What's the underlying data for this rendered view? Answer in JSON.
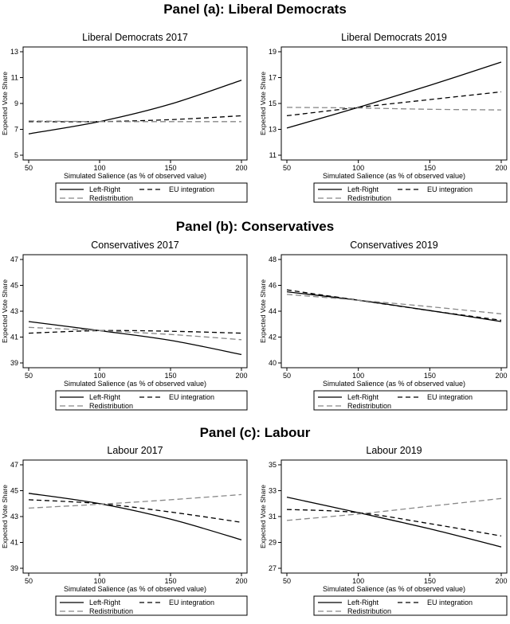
{
  "figure": {
    "x_label": "Simulated Salience (as % of observed value)",
    "y_label": "Expected Vote Share"
  },
  "panels": [
    {
      "title": "Panel (a): Liberal Democrats",
      "charts": [
        {
          "type": "line",
          "title": "Liberal Democrats 2017",
          "xlabel": "Simulated Salience (as % of observed value)",
          "ylabel": "Expected Vote Share",
          "xlim": [
            50,
            200
          ],
          "xticks": [
            50,
            100,
            150,
            200
          ],
          "ylim": [
            5,
            13
          ],
          "yticks": [
            5,
            7,
            9,
            11,
            13
          ],
          "x": [
            50,
            100,
            150,
            200
          ],
          "series": [
            {
              "name": "Left-Right",
              "style": "solid",
              "color": "#000000",
              "values": [
                6.65,
                7.6,
                8.95,
                10.8
              ]
            },
            {
              "name": "EU integration",
              "style": "dashed",
              "color": "#000000",
              "values": [
                7.6,
                7.6,
                7.75,
                8.05
              ]
            },
            {
              "name": "Redistribution",
              "style": "dashed",
              "color": "#888888",
              "values": [
                7.65,
                7.6,
                7.6,
                7.6
              ]
            }
          ]
        },
        {
          "type": "line",
          "title": "Liberal Democrats 2019",
          "xlabel": "Simulated Salience (as % of observed value)",
          "ylabel": "Expected Vote Share",
          "xlim": [
            50,
            200
          ],
          "xticks": [
            50,
            100,
            150,
            200
          ],
          "ylim": [
            11,
            19
          ],
          "yticks": [
            11,
            13,
            15,
            17,
            19
          ],
          "x": [
            50,
            100,
            150,
            200
          ],
          "series": [
            {
              "name": "Left-Right",
              "style": "solid",
              "color": "#000000",
              "values": [
                13.1,
                14.7,
                16.4,
                18.2
              ]
            },
            {
              "name": "EU integration",
              "style": "dashed",
              "color": "#000000",
              "values": [
                14.05,
                14.7,
                15.3,
                15.9
              ]
            },
            {
              "name": "Redistribution",
              "style": "dashed",
              "color": "#888888",
              "values": [
                14.7,
                14.65,
                14.55,
                14.5
              ]
            }
          ]
        }
      ]
    },
    {
      "title": "Panel (b): Conservatives",
      "charts": [
        {
          "type": "line",
          "title": "Conservatives 2017",
          "xlabel": "Simulated Salience (as % of observed value)",
          "ylabel": "Expected Vote Share",
          "xlim": [
            50,
            200
          ],
          "xticks": [
            50,
            100,
            150,
            200
          ],
          "ylim": [
            39,
            47
          ],
          "yticks": [
            39,
            41,
            43,
            45,
            47
          ],
          "x": [
            50,
            100,
            150,
            200
          ],
          "series": [
            {
              "name": "Left-Right",
              "style": "solid",
              "color": "#000000",
              "values": [
                42.2,
                41.5,
                40.75,
                39.65
              ]
            },
            {
              "name": "EU integration",
              "style": "dashed",
              "color": "#000000",
              "values": [
                41.3,
                41.5,
                41.45,
                41.3
              ]
            },
            {
              "name": "Redistribution",
              "style": "dashed",
              "color": "#888888",
              "values": [
                41.75,
                41.5,
                41.2,
                40.8
              ]
            }
          ]
        },
        {
          "type": "line",
          "title": "Conservatives 2019",
          "xlabel": "Simulated Salience (as % of observed value)",
          "ylabel": "Expected Vote Share",
          "xlim": [
            50,
            200
          ],
          "xticks": [
            50,
            100,
            150,
            200
          ],
          "ylim": [
            40,
            48
          ],
          "yticks": [
            40,
            42,
            44,
            46,
            48
          ],
          "x": [
            50,
            100,
            150,
            200
          ],
          "series": [
            {
              "name": "Left-Right",
              "style": "solid",
              "color": "#000000",
              "values": [
                45.5,
                44.85,
                44.05,
                43.2
              ]
            },
            {
              "name": "EU integration",
              "style": "dashed",
              "color": "#000000",
              "values": [
                45.65,
                44.85,
                44.05,
                43.3
              ]
            },
            {
              "name": "Redistribution",
              "style": "dashed",
              "color": "#888888",
              "values": [
                45.3,
                44.85,
                44.35,
                43.8
              ]
            }
          ]
        }
      ]
    },
    {
      "title": "Panel (c): Labour",
      "charts": [
        {
          "type": "line",
          "title": "Labour 2017",
          "xlabel": "Simulated Salience (as % of observed value)",
          "ylabel": "Expected Vote Share",
          "xlim": [
            50,
            200
          ],
          "xticks": [
            50,
            100,
            150,
            200
          ],
          "ylim": [
            39,
            47
          ],
          "yticks": [
            39,
            41,
            43,
            45,
            47
          ],
          "x": [
            50,
            100,
            150,
            200
          ],
          "series": [
            {
              "name": "Left-Right",
              "style": "solid",
              "color": "#000000",
              "values": [
                44.8,
                44.0,
                42.8,
                41.2
              ]
            },
            {
              "name": "EU integration",
              "style": "dashed",
              "color": "#000000",
              "values": [
                44.3,
                44.0,
                43.35,
                42.55
              ]
            },
            {
              "name": "Redistribution",
              "style": "dashed",
              "color": "#888888",
              "values": [
                43.65,
                43.95,
                44.3,
                44.7
              ]
            }
          ]
        },
        {
          "type": "line",
          "title": "Labour 2019",
          "xlabel": "Simulated Salience (as % of observed value)",
          "ylabel": "Expected Vote Share",
          "xlim": [
            50,
            200
          ],
          "xticks": [
            50,
            100,
            150,
            200
          ],
          "ylim": [
            27,
            35
          ],
          "yticks": [
            27,
            29,
            31,
            33,
            35
          ],
          "x": [
            50,
            100,
            150,
            200
          ],
          "series": [
            {
              "name": "Left-Right",
              "style": "solid",
              "color": "#000000",
              "values": [
                32.5,
                31.3,
                30.05,
                28.65
              ]
            },
            {
              "name": "EU integration",
              "style": "dashed",
              "color": "#000000",
              "values": [
                31.55,
                31.3,
                30.45,
                29.5
              ]
            },
            {
              "name": "Redistribution",
              "style": "dashed",
              "color": "#888888",
              "values": [
                30.7,
                31.2,
                31.8,
                32.4
              ]
            }
          ]
        }
      ]
    }
  ],
  "legend": {
    "position": "below-each-plot",
    "items": [
      {
        "label": "Left-Right",
        "style": "solid",
        "color": "#000000"
      },
      {
        "label": "EU integration",
        "style": "dashed",
        "color": "#000000"
      },
      {
        "label": "Redistribution",
        "style": "dashed",
        "color": "#888888"
      }
    ]
  },
  "chart_data": [
    {
      "type": "line",
      "title": "Liberal Democrats 2017",
      "x": [
        50,
        100,
        150,
        200
      ],
      "ylim": [
        5,
        13
      ],
      "series": [
        {
          "name": "Left-Right",
          "values": [
            6.65,
            7.6,
            8.95,
            10.8
          ]
        },
        {
          "name": "EU integration",
          "values": [
            7.6,
            7.6,
            7.75,
            8.05
          ]
        },
        {
          "name": "Redistribution",
          "values": [
            7.65,
            7.6,
            7.6,
            7.6
          ]
        }
      ]
    },
    {
      "type": "line",
      "title": "Liberal Democrats 2019",
      "x": [
        50,
        100,
        150,
        200
      ],
      "ylim": [
        11,
        19
      ],
      "series": [
        {
          "name": "Left-Right",
          "values": [
            13.1,
            14.7,
            16.4,
            18.2
          ]
        },
        {
          "name": "EU integration",
          "values": [
            14.05,
            14.7,
            15.3,
            15.9
          ]
        },
        {
          "name": "Redistribution",
          "values": [
            14.7,
            14.65,
            14.55,
            14.5
          ]
        }
      ]
    },
    {
      "type": "line",
      "title": "Conservatives 2017",
      "x": [
        50,
        100,
        150,
        200
      ],
      "ylim": [
        39,
        47
      ],
      "series": [
        {
          "name": "Left-Right",
          "values": [
            42.2,
            41.5,
            40.75,
            39.65
          ]
        },
        {
          "name": "EU integration",
          "values": [
            41.3,
            41.5,
            41.45,
            41.3
          ]
        },
        {
          "name": "Redistribution",
          "values": [
            41.75,
            41.5,
            41.2,
            40.8
          ]
        }
      ]
    },
    {
      "type": "line",
      "title": "Conservatives 2019",
      "x": [
        50,
        100,
        150,
        200
      ],
      "ylim": [
        40,
        48
      ],
      "series": [
        {
          "name": "Left-Right",
          "values": [
            45.5,
            44.85,
            44.05,
            43.2
          ]
        },
        {
          "name": "EU integration",
          "values": [
            45.65,
            44.85,
            44.05,
            43.3
          ]
        },
        {
          "name": "Redistribution",
          "values": [
            45.3,
            44.85,
            44.35,
            43.8
          ]
        }
      ]
    },
    {
      "type": "line",
      "title": "Labour 2017",
      "x": [
        50,
        100,
        150,
        200
      ],
      "ylim": [
        39,
        47
      ],
      "series": [
        {
          "name": "Left-Right",
          "values": [
            44.8,
            44.0,
            42.8,
            41.2
          ]
        },
        {
          "name": "EU integration",
          "values": [
            44.3,
            44.0,
            43.35,
            42.55
          ]
        },
        {
          "name": "Redistribution",
          "values": [
            43.65,
            43.95,
            44.3,
            44.7
          ]
        }
      ]
    },
    {
      "type": "line",
      "title": "Labour 2019",
      "x": [
        50,
        100,
        150,
        200
      ],
      "ylim": [
        27,
        35
      ],
      "series": [
        {
          "name": "Left-Right",
          "values": [
            32.5,
            31.3,
            30.05,
            28.65
          ]
        },
        {
          "name": "EU integration",
          "values": [
            31.55,
            31.3,
            30.45,
            29.5
          ]
        },
        {
          "name": "Redistribution",
          "values": [
            30.7,
            31.2,
            31.8,
            32.4
          ]
        }
      ]
    }
  ]
}
